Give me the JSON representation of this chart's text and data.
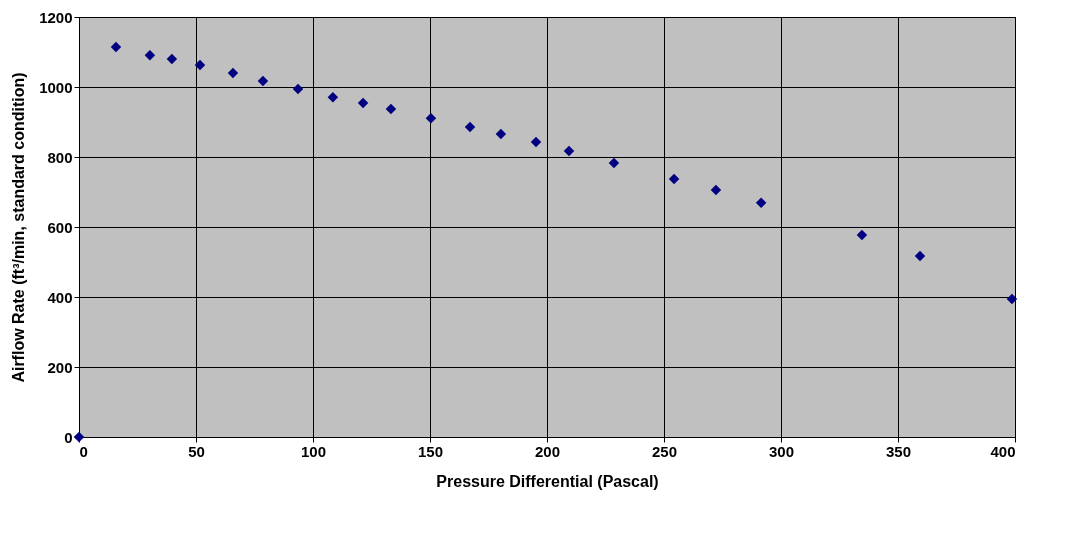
{
  "chart_data": {
    "type": "scatter",
    "xlabel": "Pressure Differential (Pascal)",
    "ylabel": "Airflow Rate (ft³/min, standard condition)",
    "x": [
      0,
      15.8,
      30.3,
      39.7,
      51.7,
      65.8,
      78.6,
      93.6,
      108.5,
      121.4,
      133.3,
      150.4,
      167.1,
      180.3,
      195.3,
      209.4,
      228.6,
      254.3,
      272.2,
      291.5,
      334.6,
      359.4,
      398.7
    ],
    "series": [
      {
        "color": "#000080",
        "values": [
          0,
          1114,
          1091,
          1080,
          1063,
          1040,
          1017,
          994,
          971,
          954,
          937,
          911,
          886,
          866,
          843,
          817,
          783,
          737,
          706,
          669,
          577,
          517,
          394
        ]
      }
    ],
    "xlim": [
      0,
      400
    ],
    "xticks": [
      0,
      50,
      100,
      150,
      200,
      250,
      300,
      350,
      400
    ],
    "ylim": [
      0,
      1200
    ],
    "yticks": [
      0,
      200,
      400,
      600,
      800,
      1000,
      1200
    ],
    "grid": true,
    "marker": "diamond"
  }
}
